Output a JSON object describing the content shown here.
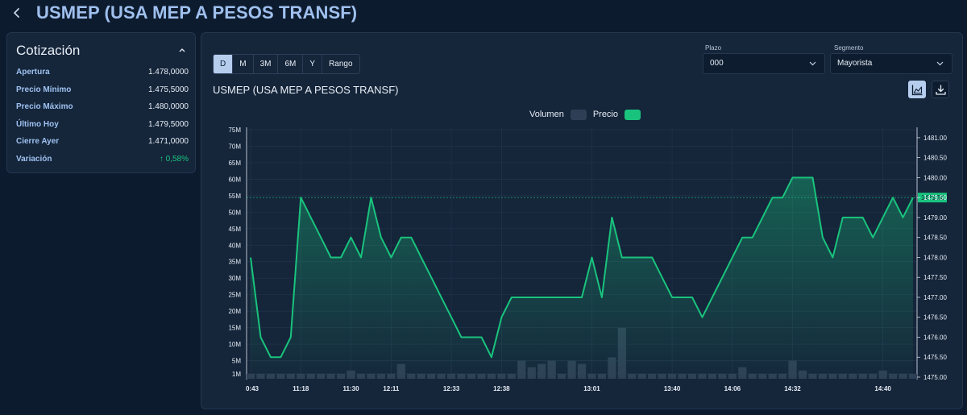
{
  "header": {
    "back_icon": "chevron-left-icon",
    "title": "USMEP (USA MEP A PESOS TRANSF)"
  },
  "quote": {
    "title": "Cotización",
    "rows": [
      {
        "label": "Apertura",
        "value": "1.478,0000"
      },
      {
        "label": "Precio Mínimo",
        "value": "1.475,5000"
      },
      {
        "label": "Precio Máximo",
        "value": "1.480,0000"
      },
      {
        "label": "Último Hoy",
        "value": "1.479,5000"
      },
      {
        "label": "Cierre Ayer",
        "value": "1.471,0000"
      },
      {
        "label": "Variación",
        "value": "↑ 0,58%"
      }
    ],
    "up_color": "#19c37d"
  },
  "toolbar": {
    "ranges": [
      "D",
      "M",
      "3M",
      "6M",
      "Y",
      "Rango"
    ],
    "active_range": "D",
    "plazo_label": "Plazo",
    "plazo_value": "000",
    "segmento_label": "Segmento",
    "segmento_value": "Mayorista"
  },
  "chart_title": "USMEP (USA MEP A PESOS TRANSF)",
  "chart_data": {
    "type": "area",
    "legend": {
      "placement": "top-center",
      "entries": [
        "Volumen",
        "Precio"
      ]
    },
    "colors": {
      "price": "#19c37d",
      "volume": "#2e3f55"
    },
    "x_tick_labels": [
      "0:43",
      "11:18",
      "11:30",
      "12:11",
      "12:33",
      "12:38",
      "13:01",
      "13:40",
      "14:06",
      "14:32",
      "14:40"
    ],
    "x_tick_positions": [
      0,
      5,
      10,
      14,
      20,
      25,
      34,
      42,
      48,
      54,
      63
    ],
    "price_series": {
      "name": "Precio",
      "values": [
        1478.0,
        1476.0,
        1475.5,
        1475.5,
        1476.0,
        1479.5,
        1479.0,
        1478.5,
        1478.0,
        1478.0,
        1478.5,
        1478.0,
        1479.5,
        1478.5,
        1478.0,
        1478.5,
        1478.5,
        1478.0,
        1477.5,
        1477.0,
        1476.5,
        1476.0,
        1476.0,
        1476.0,
        1475.5,
        1476.5,
        1477.0,
        1477.0,
        1477.0,
        1477.0,
        1477.0,
        1477.0,
        1477.0,
        1477.0,
        1478.0,
        1477.0,
        1479.0,
        1478.0,
        1478.0,
        1478.0,
        1478.0,
        1477.5,
        1477.0,
        1477.0,
        1477.0,
        1476.5,
        1477.0,
        1477.5,
        1478.0,
        1478.5,
        1478.5,
        1479.0,
        1479.5,
        1479.5,
        1480.0,
        1480.0,
        1480.0,
        1478.5,
        1478.0,
        1479.0,
        1479.0,
        1479.0,
        1478.5,
        1479.0,
        1479.5,
        1479.0,
        1479.5
      ]
    },
    "volume_series": {
      "name": "Volumen",
      "values": [
        1,
        1,
        1,
        1,
        1,
        1,
        1,
        1,
        1,
        1,
        2,
        1,
        1,
        1,
        1,
        4,
        1,
        1,
        1,
        1,
        1,
        1,
        1,
        1,
        1,
        1,
        1,
        5,
        3,
        4,
        5,
        1,
        5,
        4,
        1,
        1,
        6,
        15,
        1,
        1,
        1,
        1,
        1,
        1,
        1,
        1,
        1,
        1,
        1,
        3,
        1,
        1,
        1,
        1,
        5,
        2,
        1,
        1,
        1,
        1,
        1,
        1,
        1,
        2,
        1,
        1,
        1
      ]
    },
    "y_left": {
      "ticks": [
        "1M",
        "5M",
        "10M",
        "15M",
        "20M",
        "25M",
        "30M",
        "35M",
        "40M",
        "45M",
        "50M",
        "55M",
        "60M",
        "65M",
        "70M",
        "75M"
      ],
      "range": [
        0,
        75
      ]
    },
    "y_right": {
      "ticks": [
        "1475.00",
        "1475.50",
        "1476.00",
        "1476.50",
        "1477.00",
        "1477.50",
        "1478.00",
        "1478.50",
        "1479.00",
        "1479.50",
        "1480.00",
        "1480.50",
        "1481.00"
      ],
      "range": [
        1475.0,
        1481.2
      ]
    },
    "last_price_label": "1479.50",
    "last_price": 1479.5,
    "grid": true
  }
}
